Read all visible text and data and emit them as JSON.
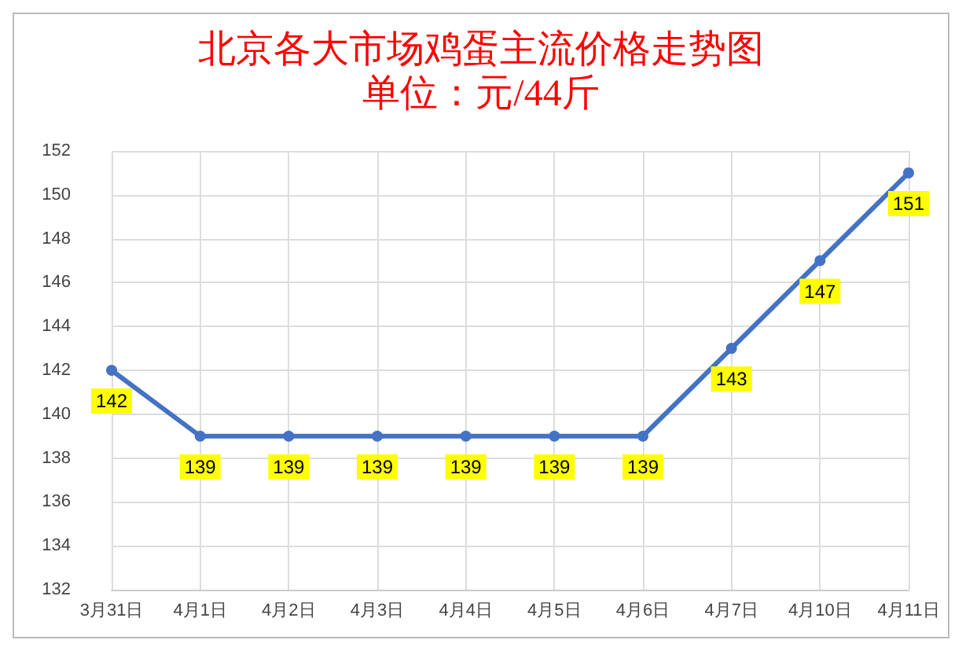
{
  "chart_data": {
    "type": "line",
    "title": "北京各大市场鸡蛋主流价格走势图",
    "subtitle": "单位：元/44斤",
    "categories": [
      "3月31日",
      "4月1日",
      "4月2日",
      "4月3日",
      "4月4日",
      "4月5日",
      "4月6日",
      "4月7日",
      "4月10日",
      "4月11日"
    ],
    "series": [
      {
        "color": "#4472c4",
        "values": [
          142,
          139,
          139,
          139,
          139,
          139,
          139,
          143,
          147,
          151
        ]
      }
    ],
    "ylim": [
      132,
      152
    ],
    "yticks": [
      132,
      134,
      136,
      138,
      140,
      142,
      144,
      146,
      148,
      150,
      152
    ],
    "grid": true,
    "marker": "circle",
    "line_style": "solid",
    "data_labels": true
  }
}
